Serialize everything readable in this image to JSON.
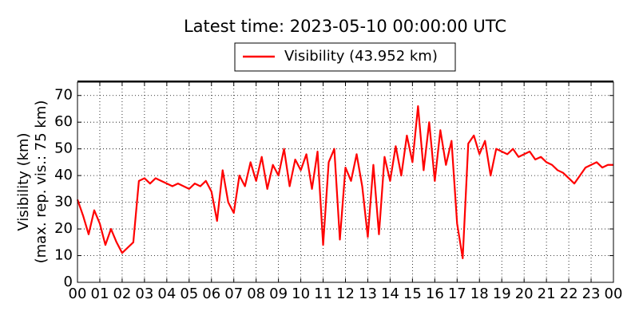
{
  "chart_data": {
    "type": "line",
    "title": "Latest time: 2023-05-10 00:00:00 UTC",
    "ylabel": [
      "Visibility (km)",
      "(max. rep. vis.: 75 km)"
    ],
    "x": [
      0,
      0.25,
      0.5,
      0.75,
      1,
      1.25,
      1.5,
      1.75,
      2,
      2.25,
      2.5,
      2.75,
      3,
      3.25,
      3.5,
      3.75,
      4,
      4.25,
      4.5,
      4.75,
      5,
      5.25,
      5.5,
      5.75,
      6,
      6.25,
      6.5,
      6.75,
      7,
      7.25,
      7.5,
      7.75,
      8,
      8.25,
      8.5,
      8.75,
      9,
      9.25,
      9.5,
      9.75,
      10,
      10.25,
      10.5,
      10.75,
      11,
      11.25,
      11.5,
      11.75,
      12,
      12.25,
      12.5,
      12.75,
      13,
      13.25,
      13.5,
      13.75,
      14,
      14.25,
      14.5,
      14.75,
      15,
      15.25,
      15.5,
      15.75,
      16,
      16.25,
      16.5,
      16.75,
      17,
      17.25,
      17.5,
      17.75,
      18,
      18.25,
      18.5,
      18.75,
      19,
      19.25,
      19.5,
      19.75,
      20,
      20.25,
      20.5,
      20.75,
      21,
      21.25,
      21.5,
      21.75,
      22,
      22.25,
      22.5,
      22.75,
      23,
      23.25,
      23.5,
      23.75,
      24
    ],
    "series": [
      {
        "name": "Visibility (43.952 km)",
        "color": "#ff0000",
        "values": [
          31,
          25,
          18,
          27,
          22,
          14,
          20,
          15,
          11,
          13,
          15,
          38,
          39,
          37,
          39,
          38,
          37,
          36,
          37,
          36,
          35,
          37,
          36,
          38,
          34,
          23,
          42,
          30,
          26,
          40,
          36,
          45,
          38,
          47,
          35,
          44,
          40,
          50,
          36,
          46,
          42,
          48,
          35,
          49,
          14,
          45,
          50,
          16,
          43,
          38,
          48,
          36,
          17,
          44,
          18,
          47,
          38,
          51,
          40,
          55,
          45,
          66,
          42,
          60,
          38,
          57,
          44,
          53,
          22,
          9,
          52,
          55,
          48,
          53,
          40,
          50,
          49,
          48,
          50,
          47,
          48,
          49,
          46,
          47,
          45,
          44,
          42,
          41,
          39,
          37,
          40,
          43,
          44,
          45,
          43,
          44,
          44
        ]
      }
    ],
    "xlim": [
      0,
      24
    ],
    "xticks": [
      {
        "value": 0,
        "label": "00"
      },
      {
        "value": 1,
        "label": "01"
      },
      {
        "value": 2,
        "label": "02"
      },
      {
        "value": 3,
        "label": "03"
      },
      {
        "value": 4,
        "label": "04"
      },
      {
        "value": 5,
        "label": "05"
      },
      {
        "value": 6,
        "label": "06"
      },
      {
        "value": 7,
        "label": "07"
      },
      {
        "value": 8,
        "label": "08"
      },
      {
        "value": 9,
        "label": "09"
      },
      {
        "value": 10,
        "label": "10"
      },
      {
        "value": 11,
        "label": "11"
      },
      {
        "value": 12,
        "label": "12"
      },
      {
        "value": 13,
        "label": "13"
      },
      {
        "value": 14,
        "label": "14"
      },
      {
        "value": 15,
        "label": "15"
      },
      {
        "value": 16,
        "label": "16"
      },
      {
        "value": 17,
        "label": "17"
      },
      {
        "value": 18,
        "label": "18"
      },
      {
        "value": 19,
        "label": "19"
      },
      {
        "value": 20,
        "label": "20"
      },
      {
        "value": 21,
        "label": "21"
      },
      {
        "value": 22,
        "label": "22"
      },
      {
        "value": 23,
        "label": "23"
      },
      {
        "value": 24,
        "label": "00"
      }
    ],
    "ylim": [
      0,
      75
    ],
    "yticks": [
      0,
      10,
      20,
      30,
      40,
      50,
      60,
      70
    ],
    "grid": true,
    "legend": "top"
  }
}
